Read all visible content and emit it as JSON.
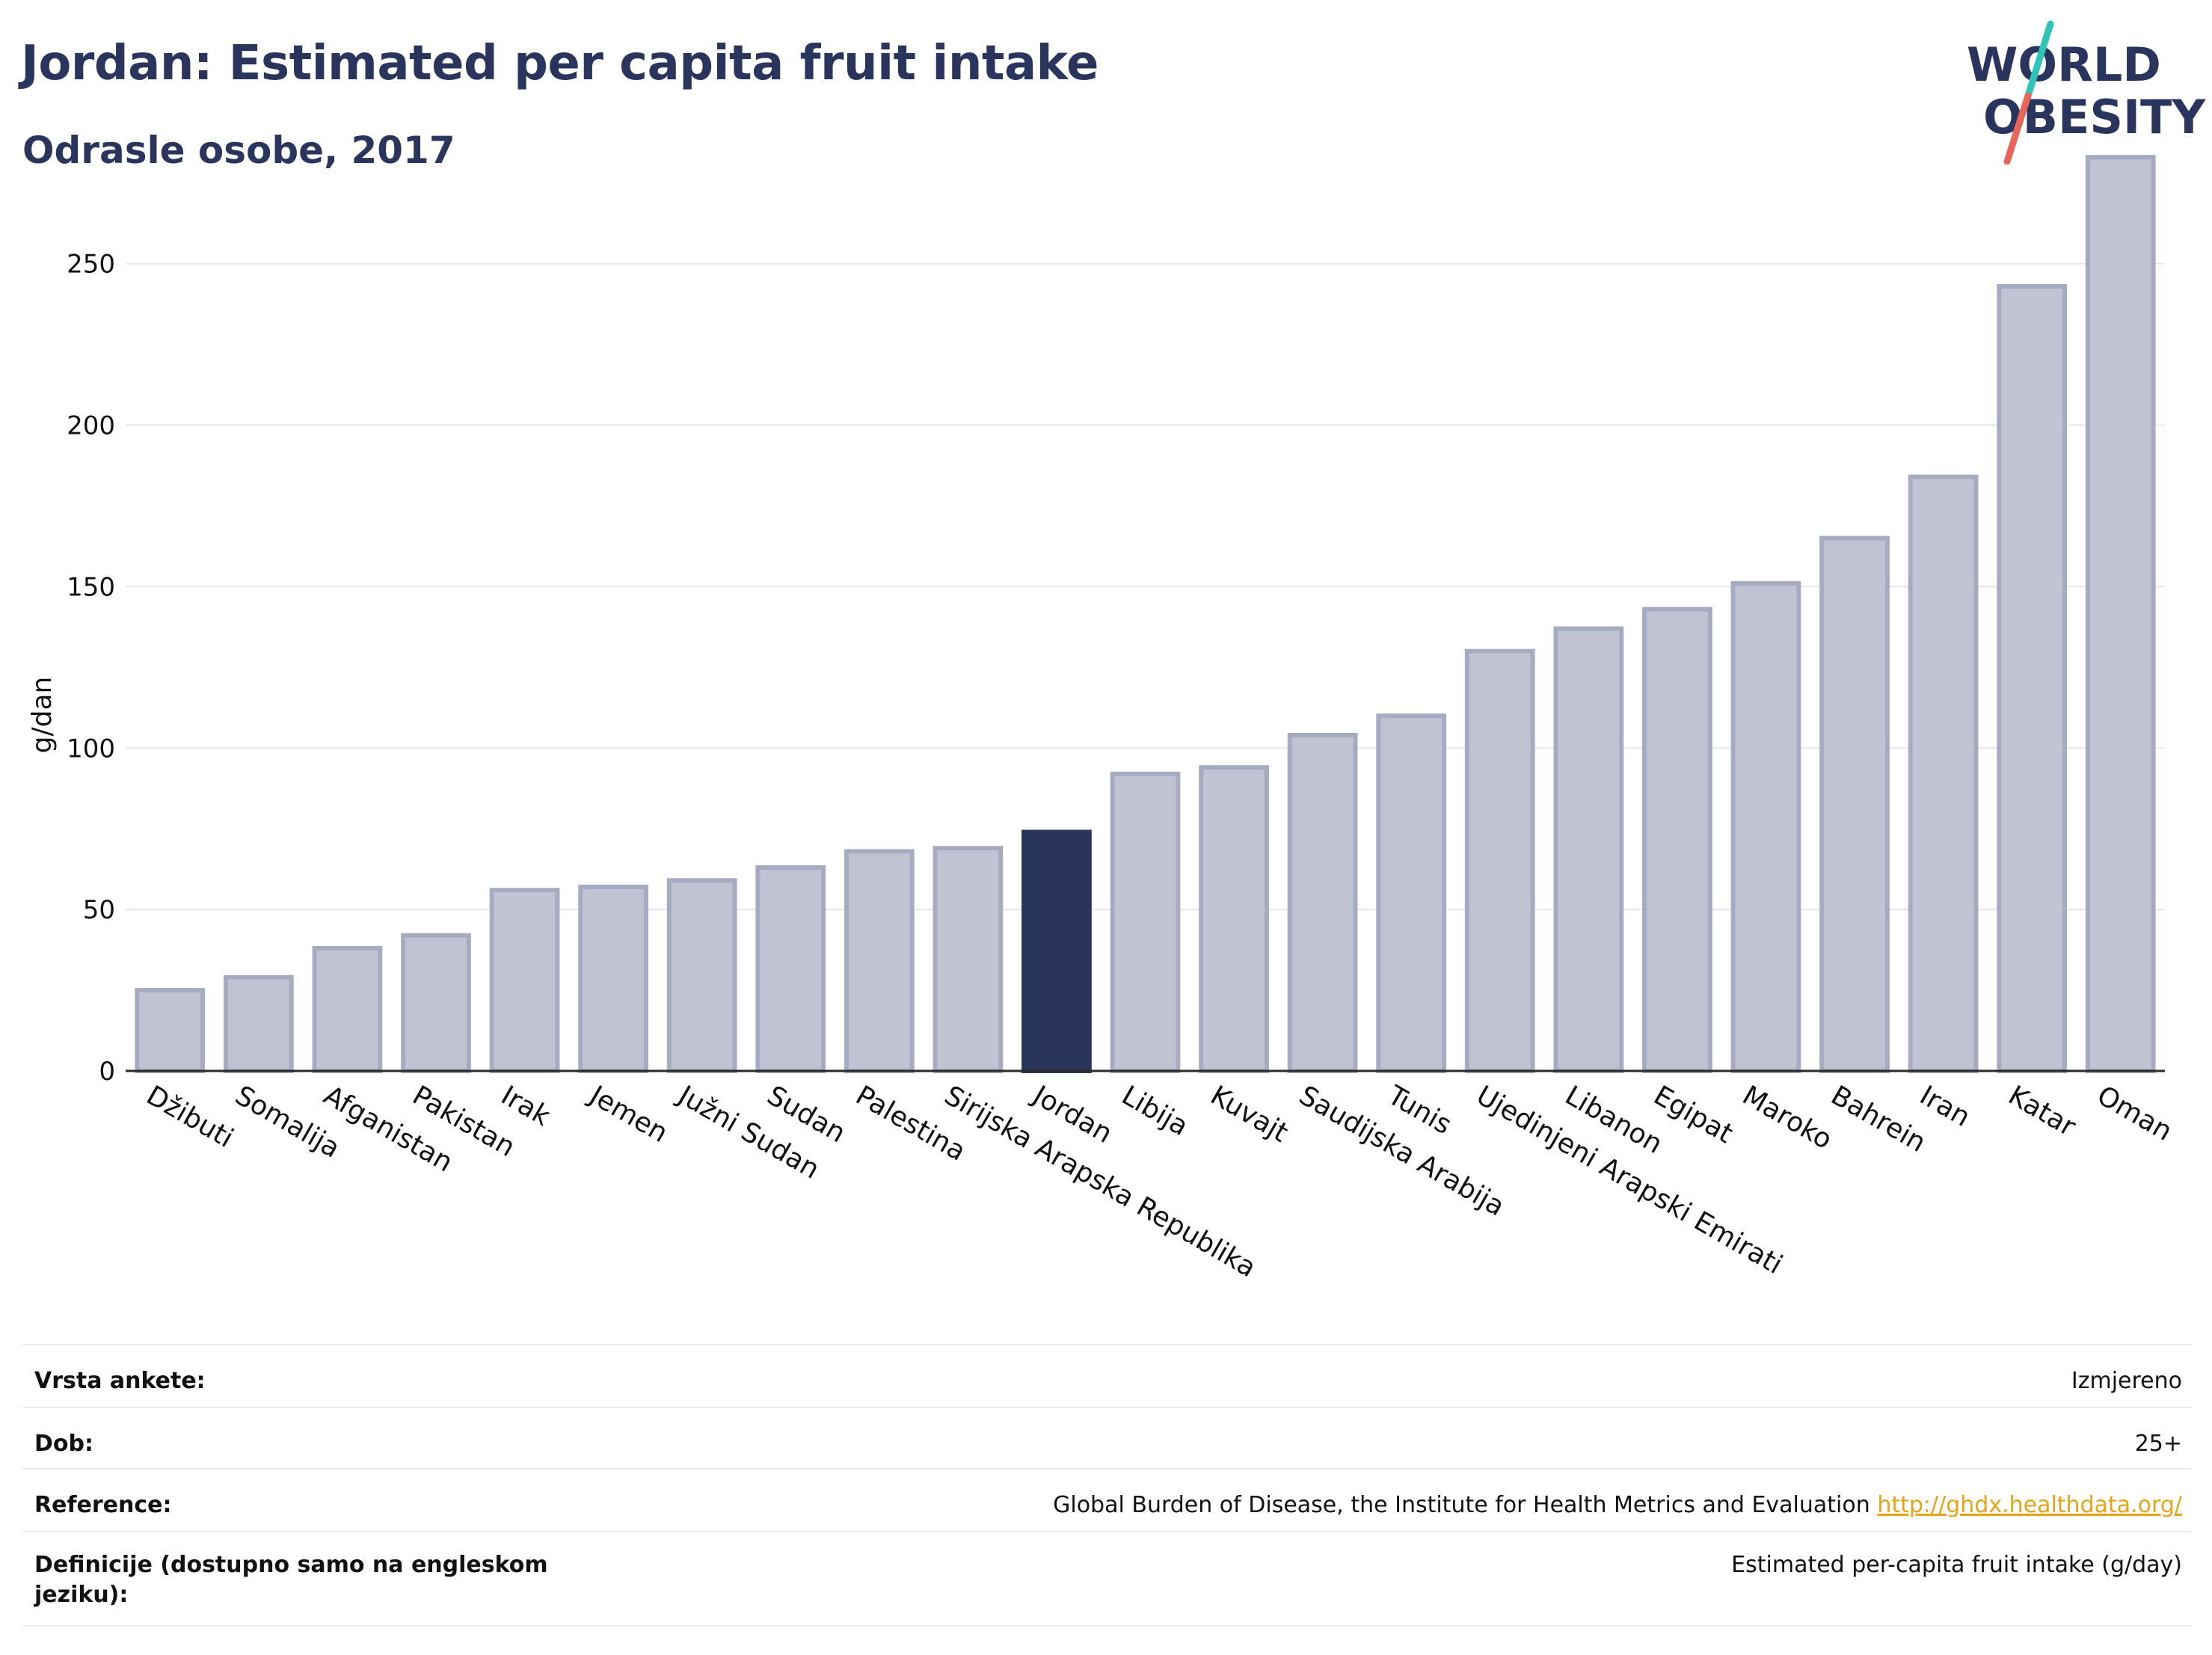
{
  "header": {
    "title": "Jordan: Estimated per capita fruit intake",
    "subtitle": "Odrasle osobe, 2017"
  },
  "logo": {
    "line1": "WORLD",
    "line2": "OBESITY",
    "icon": "world-obesity-logo",
    "slash_colors": [
      "#2ec4b6",
      "#e8655a"
    ]
  },
  "colors": {
    "bar": "#c0c4d2",
    "bar_border": "#a7abc1",
    "highlight": "#2a355e",
    "grid": "#e6e7ee",
    "axis": "#2a2a2a",
    "text": "#2a355e"
  },
  "chart_data": {
    "type": "bar",
    "title": "Jordan: Estimated per capita fruit intake",
    "subtitle": "Odrasle osobe, 2017",
    "ylabel": "g/dan",
    "xlabel": "",
    "ylim": [
      0,
      290
    ],
    "yticks": [
      0,
      50,
      100,
      150,
      200,
      250
    ],
    "grid": true,
    "highlight": "Jordan",
    "categories": [
      "Džibuti",
      "Somalija",
      "Afganistan",
      "Pakistan",
      "Irak",
      "Jemen",
      "Južni Sudan",
      "Sudan",
      "Palestina",
      "Sirijska Arapska Republika",
      "Jordan",
      "Libija",
      "Kuvajt",
      "Saudijska Arabija",
      "Tunis",
      "Ujedinjeni Arapski Emirati",
      "Libanon",
      "Egipat",
      "Maroko",
      "Bahrein",
      "Iran",
      "Katar",
      "Oman"
    ],
    "values": [
      25,
      29,
      38,
      42,
      56,
      57,
      59,
      63,
      68,
      69,
      74,
      92,
      94,
      104,
      110,
      130,
      137,
      143,
      151,
      165,
      184,
      243,
      283
    ]
  },
  "info": {
    "rows": [
      {
        "label": "Vrsta ankete:",
        "value": "Izmjereno"
      },
      {
        "label": "Dob:",
        "value": "25+"
      },
      {
        "label": "Reference:",
        "value": "Global Burden of Disease, the Institute for Health Metrics and Evaluation",
        "link": "http://ghdx.healthdata.org/"
      },
      {
        "label": "Definicije (dostupno samo na engleskom jeziku):",
        "value": "Estimated per-capita fruit intake (g/day)"
      }
    ]
  }
}
